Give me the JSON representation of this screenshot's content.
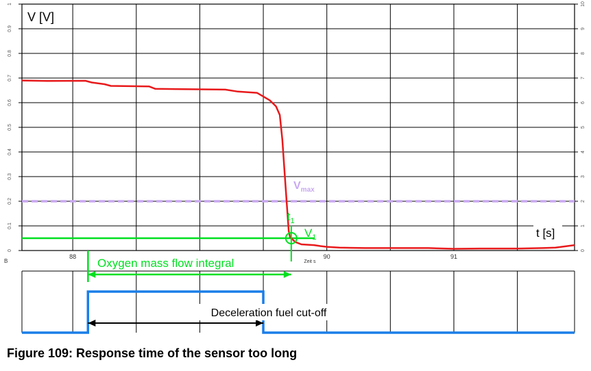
{
  "caption": "Figure 109: Response time of the sensor too long",
  "colors": {
    "signal": "#e8191b",
    "vmax": "#c8a8f0",
    "annotation": "#00e020",
    "cutoff": "#1a7ee8",
    "grid": "#000000"
  },
  "chart_data": [
    {
      "type": "line",
      "title": "",
      "ylabel": "V [V]",
      "xlabel": "t [s]",
      "x_caption": "Zeit s",
      "corner_label": "B",
      "xlim": [
        87.6,
        91.95
      ],
      "ylim": [
        0,
        1.0
      ],
      "y2lim": [
        0,
        10
      ],
      "x_ticks": [
        88,
        90,
        91
      ],
      "y_left_ticks": [
        "0",
        "0.1",
        "0.2",
        "0.3",
        "0.4",
        "0.5",
        "0.6",
        "0.7",
        "0.8",
        "0.9",
        "1"
      ],
      "y_right_ticks": [
        "0",
        "1",
        "2",
        "3",
        "4",
        "5",
        "6",
        "7",
        "8",
        "9",
        "10"
      ],
      "grid": true,
      "series": [
        {
          "x": [
            87.6,
            87.8,
            88.1,
            88.15,
            88.25,
            88.3,
            88.6,
            88.65,
            89.2,
            89.3,
            89.45,
            89.55,
            89.6,
            89.63,
            89.65,
            89.67,
            89.69,
            89.7,
            89.71,
            89.72,
            89.75,
            89.8,
            89.9,
            89.95,
            90.0,
            90.1,
            90.3,
            90.5,
            90.8,
            91.0,
            91.2,
            91.5,
            91.7,
            91.8,
            91.95
          ],
          "y": [
            0.69,
            0.688,
            0.689,
            0.682,
            0.675,
            0.668,
            0.666,
            0.656,
            0.653,
            0.645,
            0.64,
            0.61,
            0.585,
            0.55,
            0.45,
            0.3,
            0.15,
            0.08,
            0.055,
            0.05,
            0.035,
            0.025,
            0.022,
            0.018,
            0.015,
            0.012,
            0.01,
            0.01,
            0.01,
            0.007,
            0.008,
            0.008,
            0.01,
            0.012,
            0.022
          ]
        }
      ],
      "annotations": {
        "vmax": {
          "label": "V",
          "sub": "max",
          "value": 0.2
        },
        "v1": {
          "label": "V",
          "sub": "1",
          "value": 0.05
        },
        "t1": {
          "label": "t",
          "sub": "1",
          "x": 89.72
        }
      }
    },
    {
      "type": "line",
      "title": "",
      "series": [
        {
          "x": [
            87.6,
            88.12,
            88.12,
            89.5,
            89.5,
            91.95
          ],
          "y": [
            0,
            0,
            1,
            1,
            0,
            0
          ]
        }
      ],
      "annotations": {
        "integral_label": "Oxygen mass flow integral",
        "integral_range": [
          88.12,
          89.72
        ],
        "cutoff_label": "Deceleration fuel cut-off",
        "cutoff_range": [
          88.12,
          89.5
        ]
      }
    }
  ]
}
